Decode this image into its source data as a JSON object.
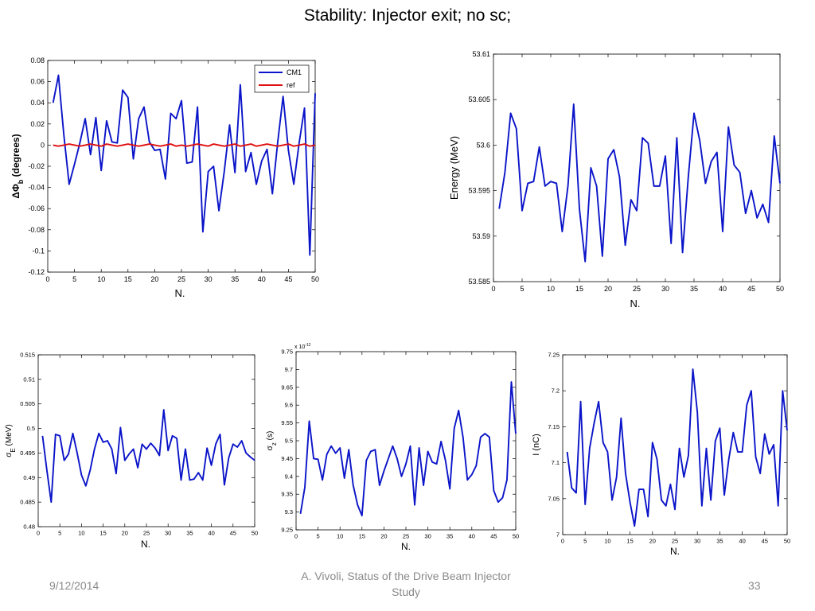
{
  "slide": {
    "title": "Stability: Injector exit; no sc;",
    "footer_date": "9/12/2014",
    "footer_center": "A. Vivoli, Status of the Drive Beam Injector Study",
    "footer_page": "33"
  },
  "colors": {
    "cm1": "#0a14c8",
    "ref": "#e01010"
  },
  "chart_data": [
    {
      "type": "line",
      "xlabel": "N.",
      "ylabel": "ΔΦ_b (degrees)",
      "xlim": [
        0,
        50
      ],
      "ylim": [
        -0.12,
        0.08
      ],
      "xticks": [
        0,
        5,
        10,
        15,
        20,
        25,
        30,
        35,
        40,
        45,
        50
      ],
      "yticks": [
        -0.12,
        -0.1,
        -0.08,
        -0.06,
        -0.04,
        -0.02,
        0,
        0.02,
        0.04,
        0.06,
        0.08
      ],
      "ytick_labels": [
        "-0.12",
        "-0.1",
        "-0.08",
        "-0.06",
        "-0.04",
        "-0.02",
        "0",
        "0.02",
        "0.04",
        "0.06",
        "0.08"
      ],
      "legend_position": "top-right",
      "x": [
        1,
        2,
        3,
        4,
        5,
        6,
        7,
        8,
        9,
        10,
        11,
        12,
        13,
        14,
        15,
        16,
        17,
        18,
        19,
        20,
        21,
        22,
        23,
        24,
        25,
        26,
        27,
        28,
        29,
        30,
        31,
        32,
        33,
        34,
        35,
        36,
        37,
        38,
        39,
        40,
        41,
        42,
        43,
        44,
        45,
        46,
        47,
        48,
        49,
        50
      ],
      "series": [
        {
          "name": "CM1",
          "color": "#0a14c8",
          "values": [
            0.04,
            0.066,
            0.01,
            -0.037,
            -0.018,
            0.002,
            0.025,
            -0.009,
            0.026,
            -0.024,
            0.023,
            0.003,
            0.002,
            0.052,
            0.045,
            -0.013,
            0.025,
            0.036,
            0.003,
            -0.005,
            -0.004,
            -0.032,
            0.03,
            0.025,
            0.042,
            -0.017,
            -0.016,
            0.036,
            -0.082,
            -0.025,
            -0.02,
            -0.062,
            -0.025,
            0.019,
            -0.026,
            0.057,
            -0.025,
            -0.007,
            -0.037,
            -0.015,
            -0.004,
            -0.046,
            0.003,
            0.046,
            -0.005,
            -0.037,
            0.002,
            0.035,
            -0.104,
            0.049
          ]
        },
        {
          "name": "ref",
          "color": "#e01010",
          "values": [
            0,
            -0.001,
            0,
            0.001,
            0,
            -0.001,
            0,
            0.001,
            0,
            -0.001,
            0.001,
            0,
            -0.001,
            0,
            0.001,
            0,
            -0.001,
            0,
            0.001,
            0,
            -0.001,
            0,
            0.001,
            -0.001,
            0,
            -0.001,
            0,
            0.001,
            0,
            -0.001,
            0.001,
            0,
            -0.001,
            0,
            0.001,
            -0.001,
            0,
            0.001,
            -0.001,
            0,
            0.001,
            0,
            -0.001,
            0,
            0.001,
            -0.001,
            0,
            0.001,
            -0.001,
            0
          ]
        }
      ]
    },
    {
      "type": "line",
      "xlabel": "N.",
      "ylabel": "Energy (MeV)",
      "xlim": [
        0,
        50
      ],
      "ylim": [
        53.585,
        53.61
      ],
      "xticks": [
        0,
        5,
        10,
        15,
        20,
        25,
        30,
        35,
        40,
        45,
        50
      ],
      "yticks": [
        53.585,
        53.59,
        53.595,
        53.6,
        53.605,
        53.61
      ],
      "ytick_labels": [
        "53.585",
        "53.59",
        "53.595",
        "53.6",
        "53.605",
        "53.61"
      ],
      "x": [
        1,
        2,
        3,
        4,
        5,
        6,
        7,
        8,
        9,
        10,
        11,
        12,
        13,
        14,
        15,
        16,
        17,
        18,
        19,
        20,
        21,
        22,
        23,
        24,
        25,
        26,
        27,
        28,
        29,
        30,
        31,
        32,
        33,
        34,
        35,
        36,
        37,
        38,
        39,
        40,
        41,
        42,
        43,
        44,
        45,
        46,
        47,
        48,
        49,
        50
      ],
      "series": [
        {
          "color": "#0a14c8",
          "values": [
            53.593,
            53.597,
            53.6035,
            53.6018,
            53.5928,
            53.5958,
            53.596,
            53.5998,
            53.5955,
            53.596,
            53.5958,
            53.5905,
            53.5955,
            53.6045,
            53.593,
            53.5872,
            53.5975,
            53.5955,
            53.5878,
            53.5985,
            53.5995,
            53.5965,
            53.589,
            53.594,
            53.5928,
            53.6008,
            53.6002,
            53.5955,
            53.5955,
            53.5988,
            53.5892,
            53.6008,
            53.5882,
            53.5965,
            53.6035,
            53.6005,
            53.5958,
            53.5982,
            53.5992,
            53.5905,
            53.602,
            53.5978,
            53.597,
            53.5925,
            53.595,
            53.592,
            53.5935,
            53.5915,
            53.601,
            53.5958
          ]
        }
      ]
    },
    {
      "type": "line",
      "xlabel": "N.",
      "ylabel": "σ_E (MeV)",
      "xlim": [
        0,
        50
      ],
      "ylim": [
        0.48,
        0.515
      ],
      "xticks": [
        0,
        5,
        10,
        15,
        20,
        25,
        30,
        35,
        40,
        45,
        50
      ],
      "yticks": [
        0.48,
        0.485,
        0.49,
        0.495,
        0.5,
        0.505,
        0.51,
        0.515
      ],
      "ytick_labels": [
        "0.48",
        "0.485",
        "0.49",
        "0.495",
        "0.5",
        "0.505",
        "0.51",
        "0.515"
      ],
      "x": [
        1,
        2,
        3,
        4,
        5,
        6,
        7,
        8,
        9,
        10,
        11,
        12,
        13,
        14,
        15,
        16,
        17,
        18,
        19,
        20,
        21,
        22,
        23,
        24,
        25,
        26,
        27,
        28,
        29,
        30,
        31,
        32,
        33,
        34,
        35,
        36,
        37,
        38,
        39,
        40,
        41,
        42,
        43,
        44,
        45,
        46,
        47,
        48,
        49,
        50
      ],
      "series": [
        {
          "color": "#0a14c8",
          "values": [
            0.4985,
            0.4915,
            0.485,
            0.4988,
            0.4985,
            0.4935,
            0.4948,
            0.499,
            0.495,
            0.4905,
            0.4883,
            0.4915,
            0.4958,
            0.499,
            0.4972,
            0.4975,
            0.4958,
            0.4908,
            0.5002,
            0.4935,
            0.4948,
            0.4958,
            0.492,
            0.4968,
            0.4958,
            0.497,
            0.496,
            0.4945,
            0.5038,
            0.4955,
            0.4985,
            0.498,
            0.4895,
            0.4958,
            0.4895,
            0.4897,
            0.491,
            0.4895,
            0.496,
            0.4925,
            0.4968,
            0.4988,
            0.4885,
            0.494,
            0.4968,
            0.4962,
            0.4975,
            0.495,
            0.4942,
            0.4935
          ]
        }
      ]
    },
    {
      "type": "line",
      "xlabel": "N.",
      "ylabel": "σ_z (s)",
      "multiplier": "x 10",
      "multiplier_exp": "-12",
      "xlim": [
        0,
        50
      ],
      "ylim": [
        9.25,
        9.75
      ],
      "xticks": [
        0,
        5,
        10,
        15,
        20,
        25,
        30,
        35,
        40,
        45,
        50
      ],
      "yticks": [
        9.25,
        9.3,
        9.35,
        9.4,
        9.45,
        9.5,
        9.55,
        9.6,
        9.65,
        9.7,
        9.75
      ],
      "ytick_labels": [
        "9.25",
        "9.3",
        "9.35",
        "9.4",
        "9.45",
        "9.5",
        "9.55",
        "9.6",
        "9.65",
        "9.7",
        "9.75"
      ],
      "x": [
        1,
        2,
        3,
        4,
        5,
        6,
        7,
        8,
        9,
        10,
        11,
        12,
        13,
        14,
        15,
        16,
        17,
        18,
        19,
        20,
        21,
        22,
        23,
        24,
        25,
        26,
        27,
        28,
        29,
        30,
        31,
        32,
        33,
        34,
        35,
        36,
        37,
        38,
        39,
        40,
        41,
        42,
        43,
        44,
        45,
        46,
        47,
        48,
        49,
        50
      ],
      "series": [
        {
          "color": "#0a14c8",
          "values": [
            9.295,
            9.37,
            9.555,
            9.45,
            9.448,
            9.39,
            9.462,
            9.485,
            9.465,
            9.48,
            9.395,
            9.475,
            9.375,
            9.32,
            9.29,
            9.445,
            9.47,
            9.475,
            9.375,
            9.415,
            9.45,
            9.485,
            9.45,
            9.4,
            9.435,
            9.485,
            9.32,
            9.48,
            9.375,
            9.47,
            9.44,
            9.435,
            9.498,
            9.445,
            9.365,
            9.535,
            9.585,
            9.51,
            9.39,
            9.405,
            9.43,
            9.51,
            9.52,
            9.51,
            9.36,
            9.328,
            9.34,
            9.39,
            9.665,
            9.52
          ]
        }
      ]
    },
    {
      "type": "line",
      "xlabel": "N.",
      "ylabel": "I (nC)",
      "xlim": [
        0,
        50
      ],
      "ylim": [
        7,
        7.25
      ],
      "xticks": [
        0,
        5,
        10,
        15,
        20,
        25,
        30,
        35,
        40,
        45,
        50
      ],
      "yticks": [
        7,
        7.05,
        7.1,
        7.15,
        7.2,
        7.25
      ],
      "ytick_labels": [
        "7",
        "7.05",
        "7.1",
        "7.15",
        "7.2",
        "7.25"
      ],
      "x": [
        1,
        2,
        3,
        4,
        5,
        6,
        7,
        8,
        9,
        10,
        11,
        12,
        13,
        14,
        15,
        16,
        17,
        18,
        19,
        20,
        21,
        22,
        23,
        24,
        25,
        26,
        27,
        28,
        29,
        30,
        31,
        32,
        33,
        34,
        35,
        36,
        37,
        38,
        39,
        40,
        41,
        42,
        43,
        44,
        45,
        46,
        47,
        48,
        49,
        50
      ],
      "series": [
        {
          "color": "#0a14c8",
          "values": [
            7.115,
            7.065,
            7.058,
            7.185,
            7.042,
            7.12,
            7.155,
            7.185,
            7.128,
            7.115,
            7.048,
            7.08,
            7.162,
            7.085,
            7.045,
            7.012,
            7.063,
            7.063,
            7.025,
            7.128,
            7.105,
            7.048,
            7.04,
            7.07,
            7.035,
            7.12,
            7.08,
            7.11,
            7.23,
            7.17,
            7.04,
            7.12,
            7.048,
            7.13,
            7.148,
            7.055,
            7.105,
            7.142,
            7.115,
            7.115,
            7.18,
            7.2,
            7.108,
            7.085,
            7.14,
            7.112,
            7.125,
            7.04,
            7.2,
            7.145
          ]
        }
      ]
    }
  ]
}
